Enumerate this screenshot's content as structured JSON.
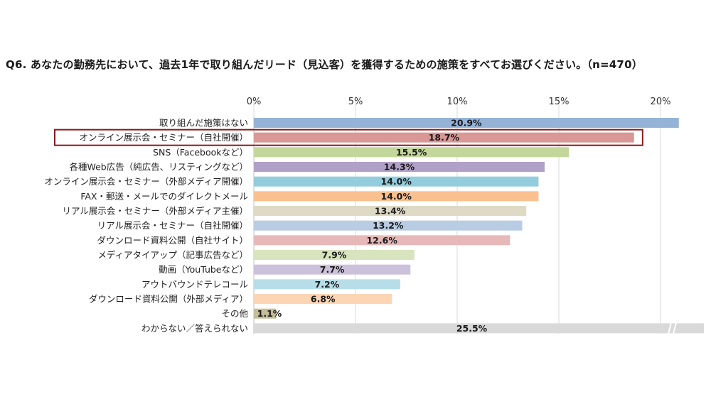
{
  "title": "Q6. あなたの勤務先において、過去1年で取り組んだリード（見込客）を獲得するための施策をすべてお選びください。（n=470）",
  "chart_data": {
    "type": "bar",
    "orientation": "horizontal",
    "title": "Q6. あなたの勤務先において、過去1年で取り組んだリード（見込客）を獲得するための施策をすべてお選びください。（n=470）",
    "xlim": [
      0,
      20
    ],
    "xticks": [
      "0%",
      "5%",
      "10%",
      "15%",
      "20%"
    ],
    "grid": true,
    "legend": "none",
    "highlighted_category": "オンライン展示会・セミナー（自社開催）",
    "highlight_color": "#8b1a1a",
    "axis_break_on": "わからない／答えられない",
    "categories": [
      "取り組んだ施策はない",
      "オンライン展示会・セミナー（自社開催）",
      "SNS（Facebookなど）",
      "各種Web広告（純広告、リスティングなど）",
      "オンライン展示会・セミナー（外部メディア開催）",
      "FAX・郵送・メールでのダイレクトメール",
      "リアル展示会・セミナー（外部メディア主催）",
      "リアル展示会・セミナー（自社開催）",
      "ダウンロード資料公開（自社サイト）",
      "メディアタイアップ（記事広告など）",
      "動画（YouTubeなど）",
      "アウトバウンドテレコール",
      "ダウンロード資料公開（外部メディア）",
      "その他",
      "わからない／答えられない"
    ],
    "values": [
      20.9,
      18.7,
      15.5,
      14.3,
      14.0,
      14.0,
      13.4,
      13.2,
      12.6,
      7.9,
      7.7,
      7.2,
      6.8,
      1.1,
      25.5
    ],
    "value_labels": [
      "20.9%",
      "18.7%",
      "15.5%",
      "14.3%",
      "14.0%",
      "14.0%",
      "13.4%",
      "13.2%",
      "12.6%",
      "7.9%",
      "7.7%",
      "7.2%",
      "6.8%",
      "1.1%",
      "25.5%"
    ],
    "colors": [
      "#95b3d7",
      "#d99795",
      "#c4d79b",
      "#b1a0c7",
      "#93cddd",
      "#fac090",
      "#ddd9c4",
      "#b8cce4",
      "#e6b9b8",
      "#d7e4bd",
      "#ccc1da",
      "#b7dee8",
      "#fcd5b5",
      "#c4bd97",
      "#d9d9d9"
    ]
  }
}
